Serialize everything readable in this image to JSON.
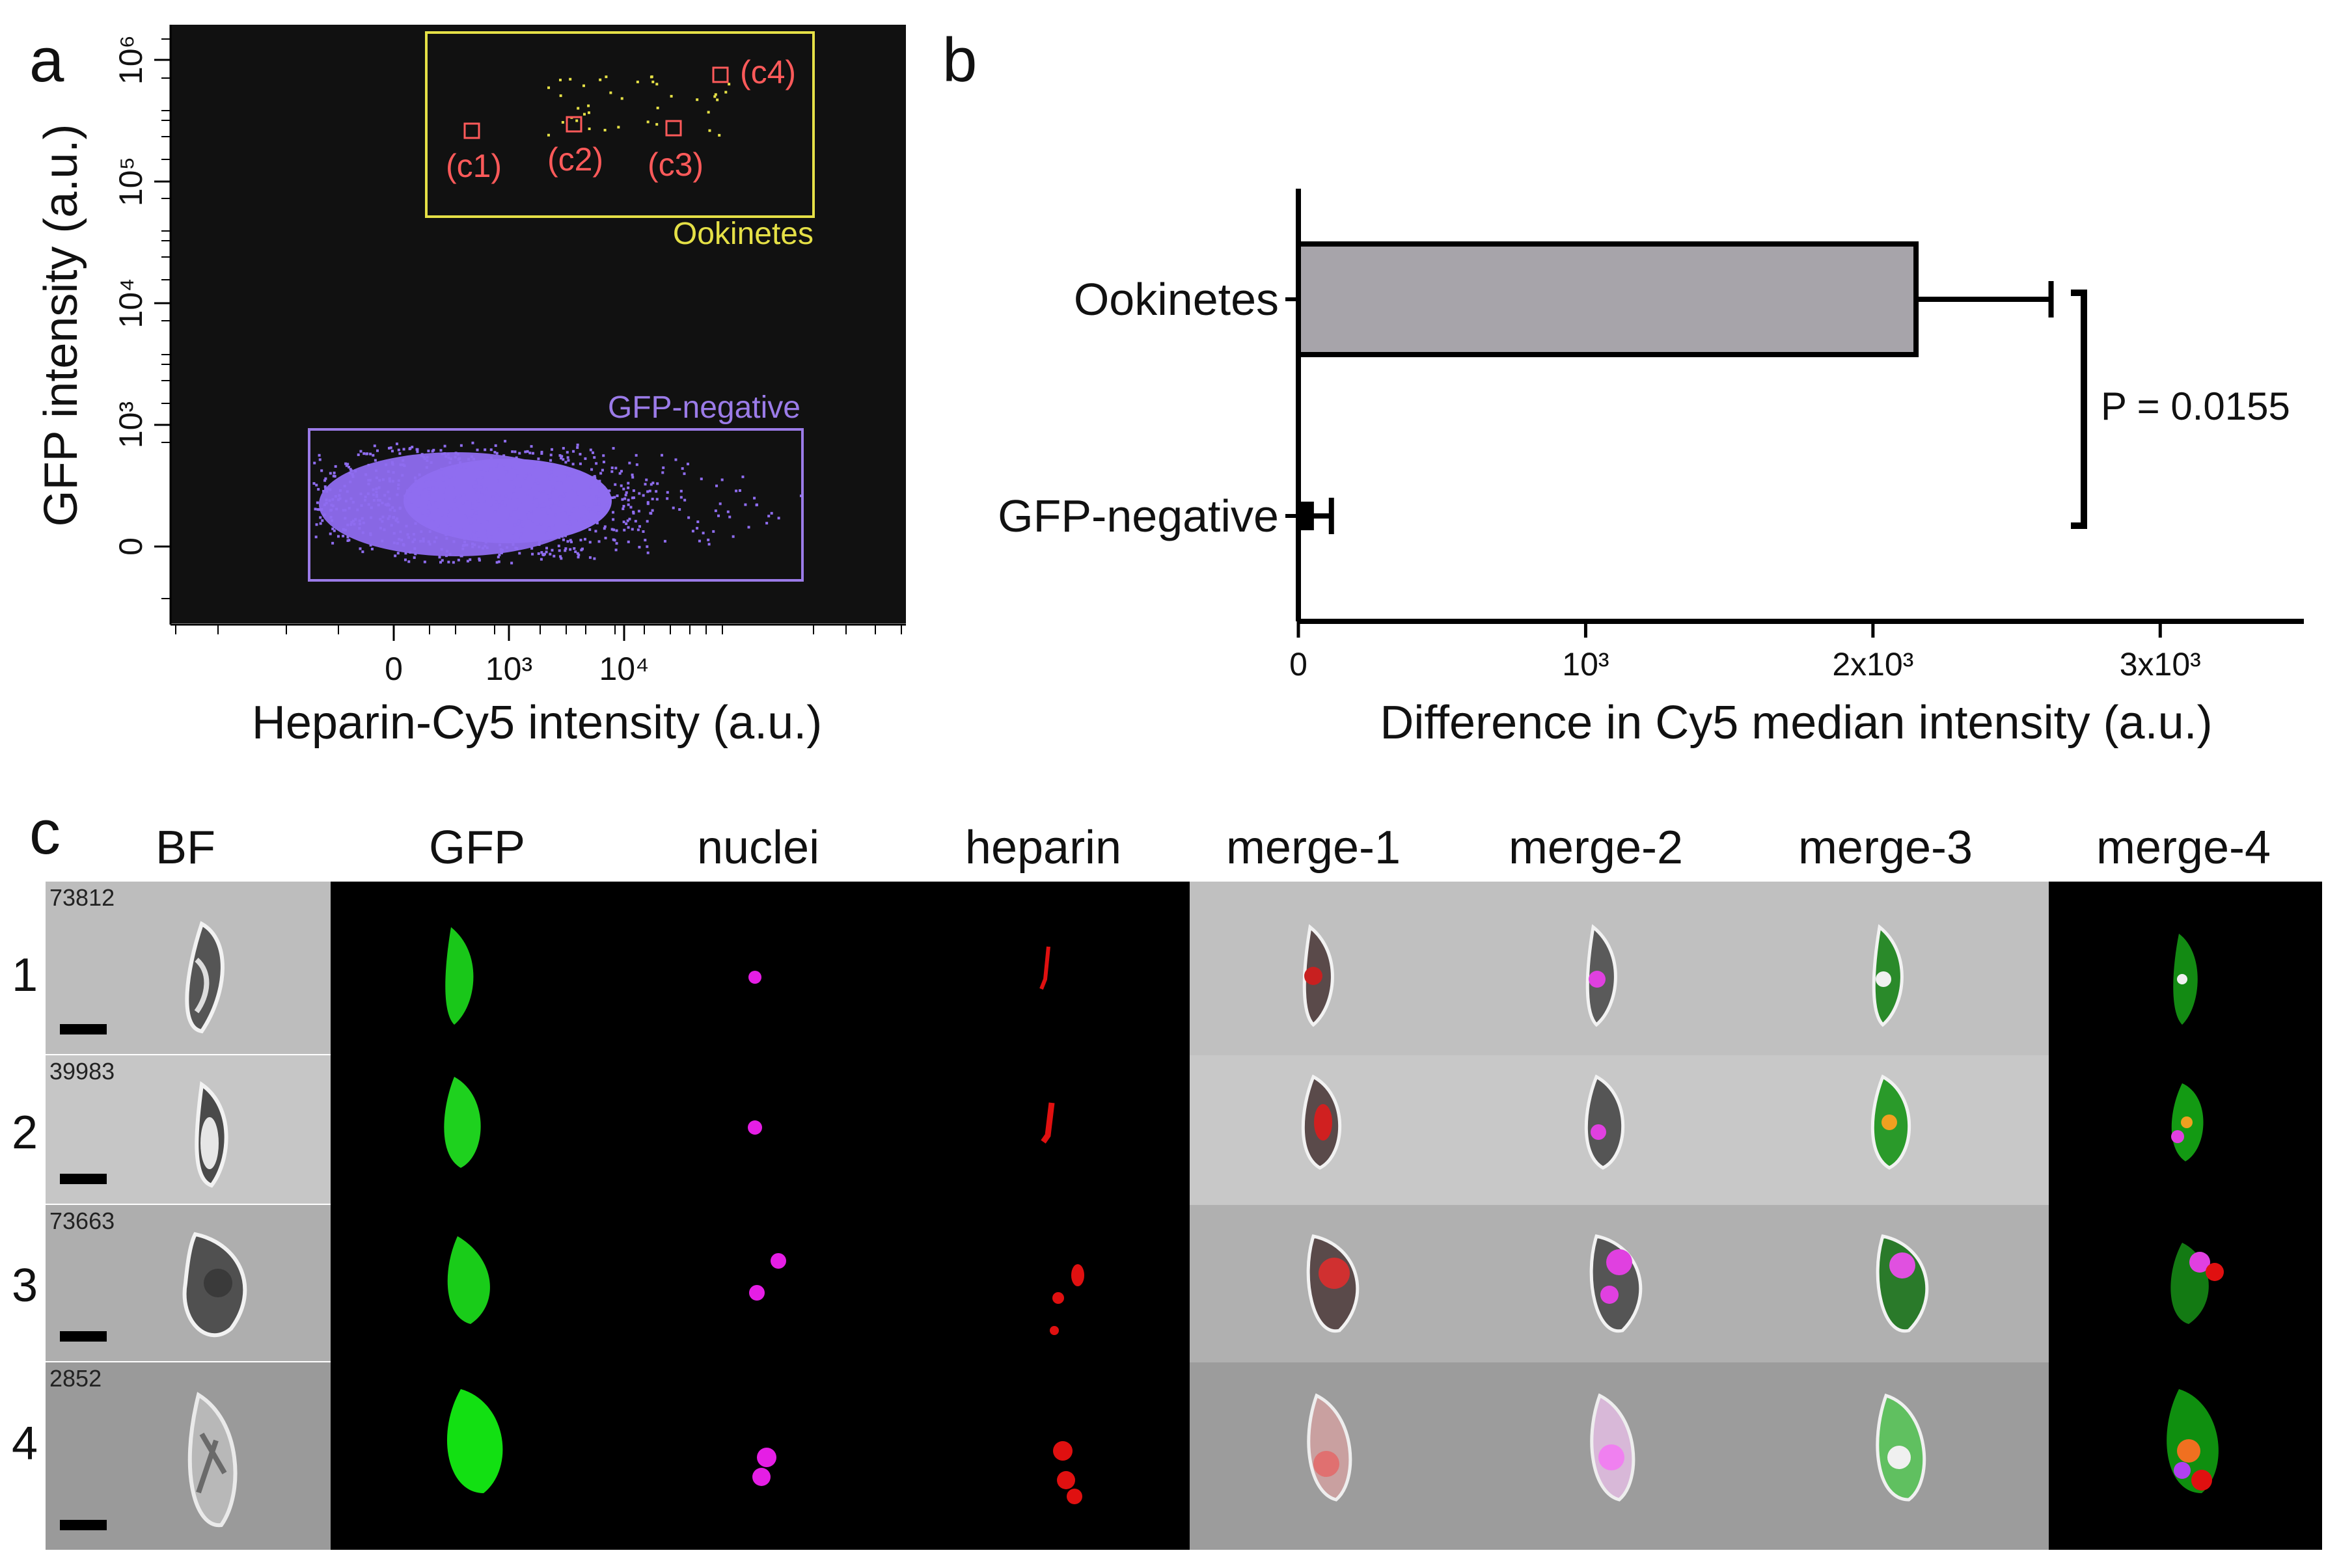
{
  "panel_a": {
    "letter": "a",
    "xlabel": "Heparin-Cy5 intensity (a.u.)",
    "ylabel": "GFP intensity (a.u.)",
    "xticks": [
      {
        "label": "0",
        "v": 0
      },
      {
        "label": "10³",
        "v": 1
      },
      {
        "label": "10⁴",
        "v": 2
      }
    ],
    "yticks": [
      {
        "label": "0",
        "v": 0
      },
      {
        "label": "10³",
        "v": 1
      },
      {
        "label": "10⁴",
        "v": 2
      },
      {
        "label": "10⁵",
        "v": 3
      },
      {
        "label": "10⁶",
        "v": 4
      }
    ],
    "gate_ookinetes": "Ookinetes",
    "gate_gfp_negative": "GFP-negative",
    "cells": [
      "(c1)",
      "(c2)",
      "(c3)",
      "(c4)"
    ],
    "colors": {
      "background": "#111111",
      "ookinete_gate": "#e5e046",
      "negative_gate": "#9b7be8",
      "cell_marker": "#ff5a5a",
      "negative_dots": "#8f6df0"
    }
  },
  "chart_data": {
    "type": "bar",
    "orientation": "horizontal",
    "categories": [
      "Ookinetes",
      "GFP-negative"
    ],
    "values": [
      2150,
      45
    ],
    "errors": [
      470,
      70
    ],
    "xlabel": "Difference in Cy5 median intensity (a.u.)",
    "xlim": [
      0,
      3500
    ],
    "xticks": [
      {
        "label": "0",
        "v": 0
      },
      {
        "label": "10³",
        "v": 1000
      },
      {
        "label": "2x10³",
        "v": 2000
      },
      {
        "label": "3x10³",
        "v": 3000
      }
    ],
    "annotation": "P = 0.0155",
    "bar_color": "#a7a4aa"
  },
  "panel_b": {
    "letter": "b"
  },
  "panel_c": {
    "letter": "c",
    "columns": [
      "BF",
      "GFP",
      "nuclei",
      "heparin",
      "merge-1",
      "merge-2",
      "merge-3",
      "merge-4"
    ],
    "rows": [
      {
        "num": "1",
        "id": "73812"
      },
      {
        "num": "2",
        "id": "39983"
      },
      {
        "num": "3",
        "id": "73663"
      },
      {
        "num": "4",
        "id": "2852"
      }
    ]
  }
}
